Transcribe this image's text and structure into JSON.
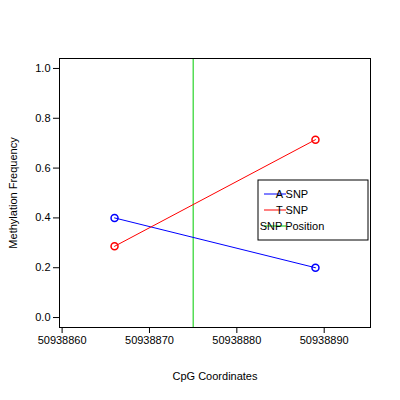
{
  "chart_data": {
    "type": "line",
    "x_label": "CpG Coordinates",
    "y_label": "Methylation Frequency",
    "x": [
      50938866,
      50938889
    ],
    "series": [
      {
        "name": "A SNP",
        "color": "#0000ff",
        "values": [
          0.4,
          0.2
        ],
        "marker": "circle",
        "line_style": "solid"
      },
      {
        "name": "T SNP",
        "color": "#ff0000",
        "values": [
          0.286,
          0.714
        ],
        "marker": "circle",
        "line_style": "solid"
      }
    ],
    "vlines": [
      {
        "name": "SNP Position",
        "color": "#00cc00",
        "value": 50938875
      }
    ],
    "xlim": [
      50938859.7,
      50938895.3
    ],
    "xticks": [
      50938860,
      50938870,
      50938880,
      50938890
    ],
    "ylim": [
      -0.04,
      1.04
    ],
    "yticks": [
      {
        "value": 0,
        "label": "0.0"
      },
      {
        "value": 0.2,
        "label": "0.2"
      },
      {
        "value": 0.4,
        "label": "0.4"
      },
      {
        "value": 0.6,
        "label": "0.6"
      },
      {
        "value": 0.8,
        "label": "0.8"
      },
      {
        "value": 1,
        "label": "1.0"
      }
    ],
    "legend": "right",
    "grid": false
  }
}
